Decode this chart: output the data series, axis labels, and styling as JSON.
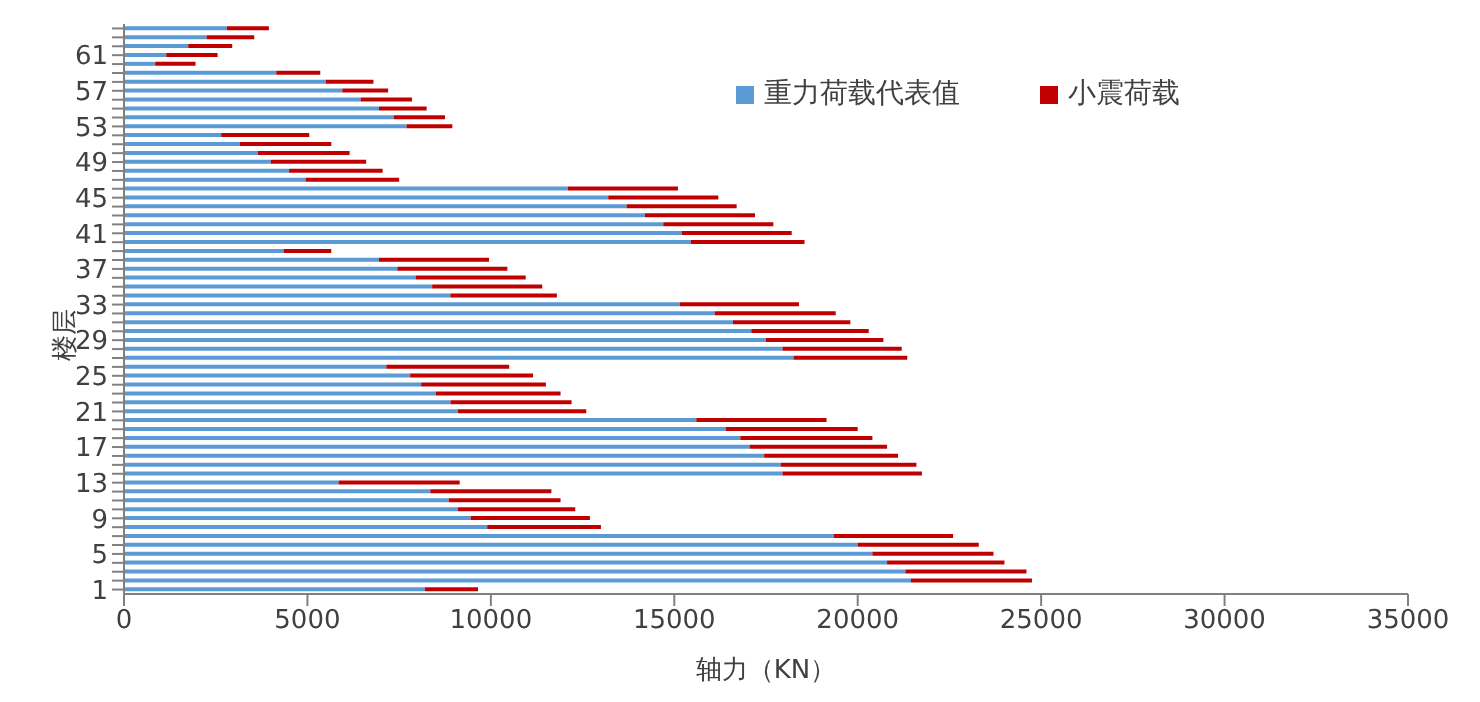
{
  "chart_data": {
    "type": "bar",
    "orientation": "horizontal",
    "stacked": true,
    "xlabel": "轴力（KN）",
    "ylabel": "楼层",
    "categories": [
      null,
      null,
      null,
      "61",
      null,
      null,
      null,
      "57",
      null,
      null,
      null,
      "53",
      null,
      null,
      null,
      "49",
      null,
      null,
      null,
      "45",
      null,
      null,
      null,
      "41",
      null,
      null,
      null,
      "37",
      null,
      null,
      null,
      "33",
      null,
      null,
      null,
      "29",
      null,
      null,
      null,
      "25",
      null,
      null,
      null,
      "21",
      null,
      null,
      null,
      "17",
      null,
      null,
      null,
      "13",
      null,
      null,
      null,
      "9",
      null,
      null,
      null,
      "5",
      null,
      null,
      null,
      "1"
    ],
    "series": [
      {
        "name": "重力荷载代表值",
        "color": "#5b9bd5",
        "values": [
          2800,
          2250,
          1750,
          1150,
          850,
          4150,
          5500,
          5950,
          6450,
          6950,
          7350,
          7700,
          2650,
          3150,
          3650,
          4000,
          4500,
          4950,
          12100,
          13200,
          13700,
          14200,
          14700,
          15200,
          15450,
          4350,
          6950,
          7450,
          7950,
          8400,
          8900,
          15150,
          16100,
          16600,
          17100,
          17500,
          17950,
          18250,
          7150,
          7800,
          8100,
          8500,
          8900,
          9100,
          15600,
          16400,
          16800,
          17050,
          17450,
          17900,
          17950,
          5850,
          8350,
          8850,
          9100,
          9450,
          9900,
          19350,
          20000,
          20400,
          20800,
          21300,
          21450,
          8200
        ]
      },
      {
        "name": "小震荷载",
        "color": "#c00000",
        "values": [
          1150,
          1300,
          1200,
          1400,
          1100,
          1200,
          1300,
          1250,
          1400,
          1300,
          1400,
          1250,
          2400,
          2500,
          2500,
          2600,
          2550,
          2550,
          3000,
          3000,
          3000,
          3000,
          3000,
          3000,
          3100,
          1300,
          3000,
          3000,
          3000,
          3000,
          2900,
          3250,
          3300,
          3200,
          3200,
          3200,
          3250,
          3100,
          3350,
          3350,
          3400,
          3400,
          3300,
          3500,
          3550,
          3600,
          3600,
          3750,
          3650,
          3700,
          3800,
          3300,
          3300,
          3050,
          3200,
          3250,
          3100,
          3250,
          3300,
          3300,
          3200,
          3300,
          3300,
          1450
        ]
      }
    ],
    "xlim": [
      0,
      35000
    ],
    "xticks": [
      0,
      5000,
      10000,
      15000,
      20000,
      25000,
      30000,
      35000
    ],
    "grid": false,
    "legend": "top right"
  }
}
